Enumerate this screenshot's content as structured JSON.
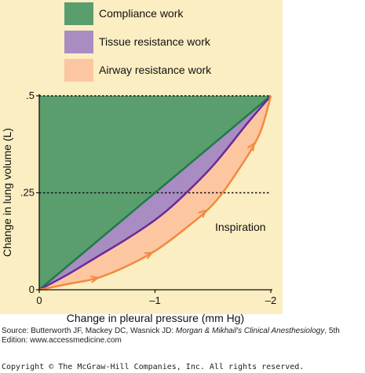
{
  "chart_data": {
    "type": "area",
    "xlabel": "Change in pleural pressure (mm Hg)",
    "ylabel": "Change in lung volume (L)",
    "xlim": [
      0,
      -2
    ],
    "ylim": [
      0,
      0.5
    ],
    "x_ticks": [
      "0",
      "–1",
      "–2"
    ],
    "x_tick_values": [
      0,
      -1,
      -2
    ],
    "y_ticks": [
      "0",
      ".25",
      ".5"
    ],
    "y_tick_values": [
      0,
      0.25,
      0.5
    ],
    "reference_lines": [
      0.25,
      0.5
    ],
    "legend_position": "top",
    "series": [
      {
        "name": "Compliance work",
        "color": "#5a9e6e",
        "x": [
          0,
          -2
        ],
        "y": [
          0,
          0.5
        ]
      },
      {
        "name": "Tissue resistance work",
        "color": "#a98cc1",
        "x": [
          0,
          -0.25,
          -0.5,
          -0.75,
          -1.0,
          -1.2,
          -1.5,
          -1.8,
          -2.0
        ],
        "y": [
          0,
          0.04,
          0.085,
          0.13,
          0.18,
          0.23,
          0.32,
          0.43,
          0.5
        ]
      },
      {
        "name": "Airway resistance work",
        "color": "#fcc6a0",
        "x": [
          0,
          -0.25,
          -0.5,
          -0.75,
          -1.0,
          -1.25,
          -1.5,
          -1.7,
          -1.9,
          -2.0
        ],
        "y": [
          0,
          0.015,
          0.03,
          0.06,
          0.1,
          0.155,
          0.22,
          0.3,
          0.4,
          0.5
        ]
      }
    ],
    "annotations": [
      "Inspiration"
    ]
  },
  "source": {
    "prefix": "Source: Butterworth JF, Mackey DC, Wasnick JD: ",
    "title": "Morgan & Mikhail's Clinical Anesthesiology",
    "suffix": ", 5th Edition: www.accessmedicine.com"
  },
  "copyright": "Copyright © The McGraw-Hill Companies, Inc. All rights reserved."
}
